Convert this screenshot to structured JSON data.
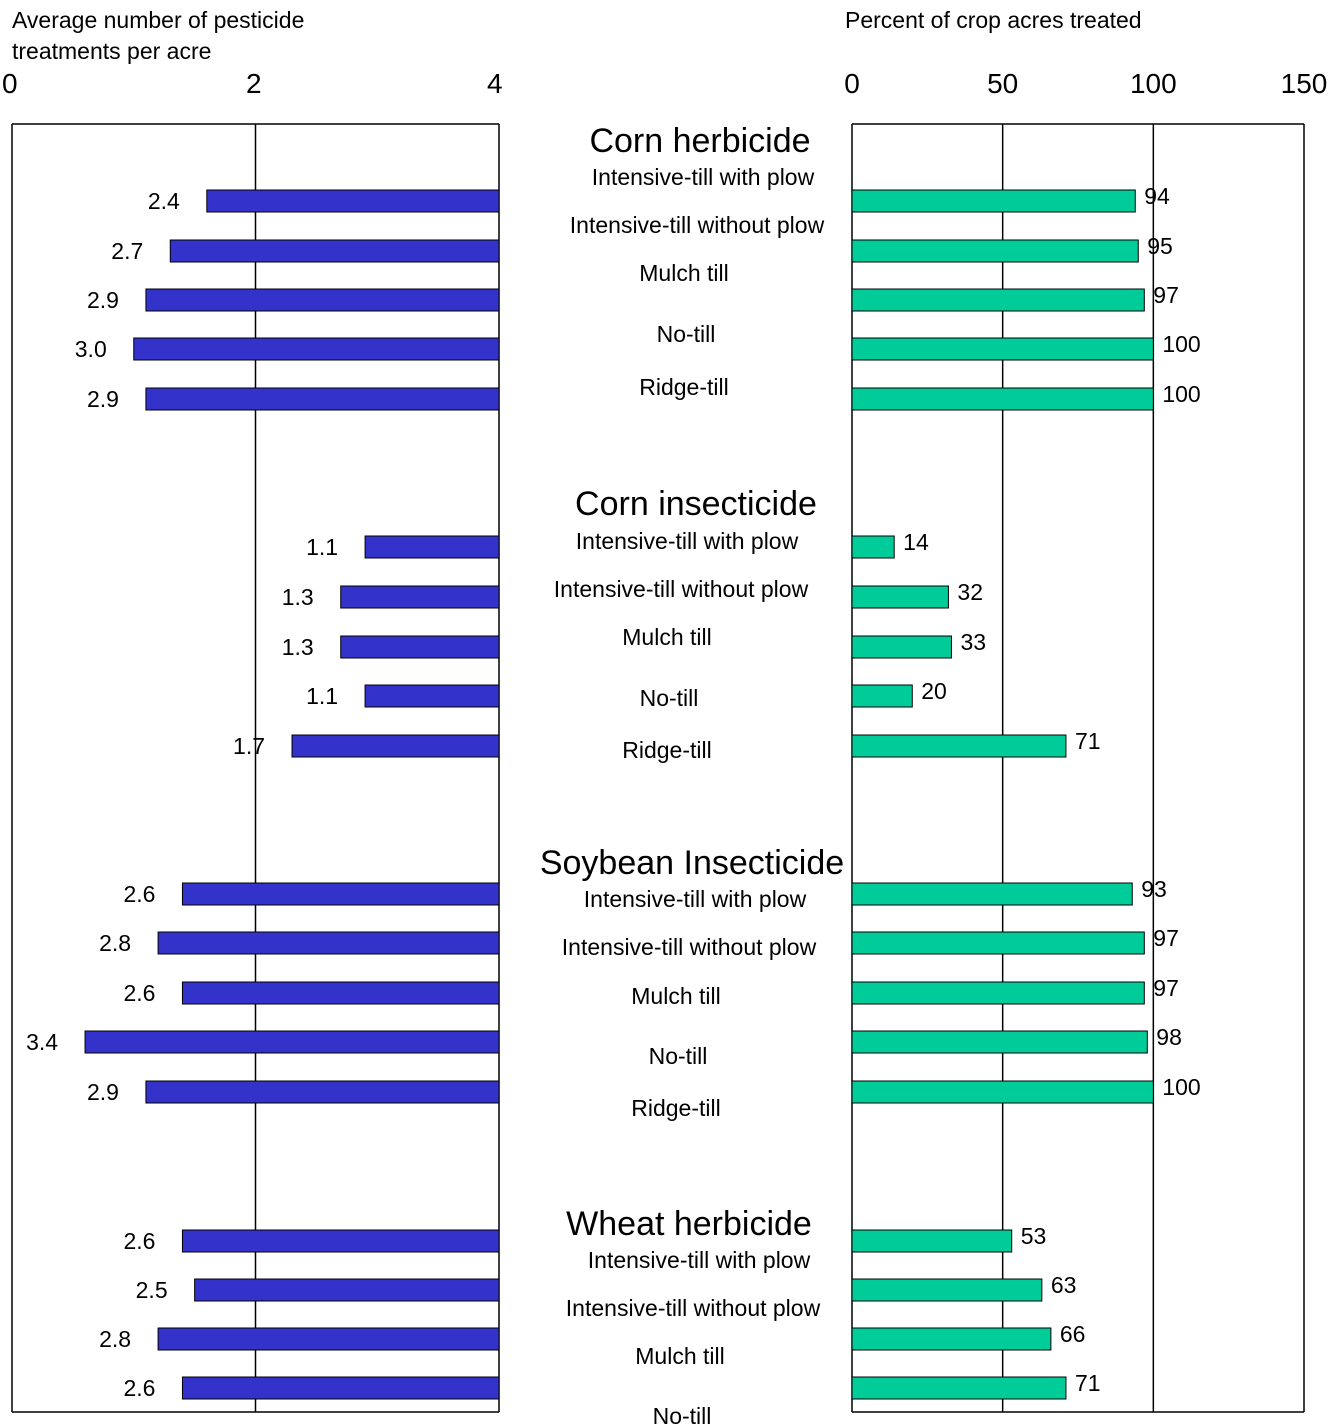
{
  "colors": {
    "left_bar": "#3333CC",
    "right_bar": "#00CC99",
    "axis": "#000000"
  },
  "chart_data": [
    {
      "type": "bar",
      "orientation": "horizontal-reversed",
      "xlabel": "Average number of pesticide treatments per acre",
      "xlim": [
        0,
        4
      ],
      "ticks": [
        "0",
        "2",
        "4"
      ],
      "grid": true,
      "groups": [
        {
          "title": "Corn herbicide",
          "values": [
            2.4,
            2.7,
            2.9,
            3.0,
            2.9
          ],
          "labels": [
            "2.4",
            "2.7",
            "2.9",
            "3.0",
            "2.9"
          ]
        },
        {
          "title": "Corn insecticide",
          "values": [
            1.1,
            1.3,
            1.3,
            1.1,
            1.7
          ],
          "labels": [
            "1.1",
            "1.3",
            "1.3",
            "1.1",
            "1.7"
          ]
        },
        {
          "title": "Soybean Insecticide",
          "values": [
            2.6,
            2.8,
            2.6,
            3.4,
            2.9
          ],
          "labels": [
            "2.6",
            "2.8",
            "2.6",
            "3.4",
            "2.9"
          ]
        },
        {
          "title": "Wheat herbicide",
          "values": [
            2.6,
            2.5,
            2.8,
            2.6
          ],
          "labels": [
            "2.6",
            "2.5",
            "2.8",
            "2.6"
          ]
        }
      ]
    },
    {
      "type": "bar",
      "orientation": "horizontal",
      "xlabel": "Percent of crop acres treated",
      "xlim": [
        0,
        150
      ],
      "ticks": [
        "0",
        "50",
        "100",
        "150"
      ],
      "grid": true,
      "groups": [
        {
          "title": "Corn herbicide",
          "values": [
            94,
            95,
            97,
            100,
            100
          ],
          "labels": [
            "94",
            "95",
            "97",
            "100",
            "100"
          ]
        },
        {
          "title": "Corn insecticide",
          "values": [
            14,
            32,
            33,
            20,
            71
          ],
          "labels": [
            "14",
            "32",
            "33",
            "20",
            "71"
          ]
        },
        {
          "title": "Soybean Insecticide",
          "values": [
            93,
            97,
            97,
            98,
            100
          ],
          "labels": [
            "93",
            "97",
            "97",
            "98",
            "100"
          ]
        },
        {
          "title": "Wheat herbicide",
          "values": [
            53,
            63,
            66,
            71
          ],
          "labels": [
            "53",
            "63",
            "66",
            "71"
          ]
        }
      ]
    }
  ],
  "center": {
    "groups": [
      {
        "title": "Corn herbicide",
        "categories": [
          "Intensive-till with plow",
          "Intensive-till without plow",
          "Mulch till",
          "No-till",
          "Ridge-till"
        ]
      },
      {
        "title": "Corn insecticide",
        "categories": [
          "Intensive-till with plow",
          "Intensive-till without plow",
          "Mulch till",
          "No-till",
          "Ridge-till"
        ]
      },
      {
        "title": "Soybean Insecticide",
        "categories": [
          "Intensive-till with plow",
          "Intensive-till without plow",
          "Mulch till",
          "No-till",
          "Ridge-till"
        ]
      },
      {
        "title": "Wheat herbicide",
        "categories": [
          "Intensive-till with plow",
          "Intensive-till without plow",
          "Mulch till",
          "No-till"
        ]
      }
    ]
  }
}
